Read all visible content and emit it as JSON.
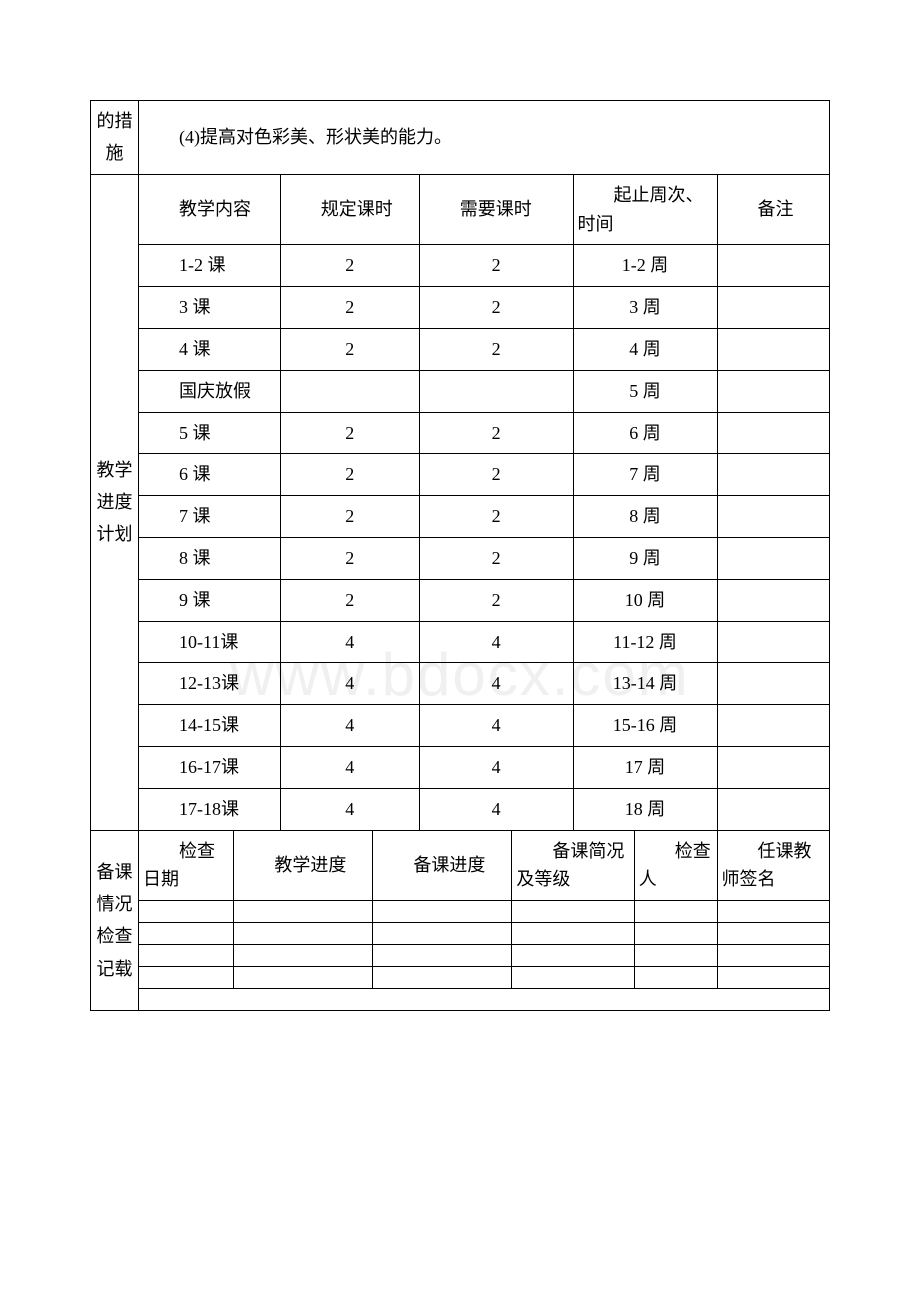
{
  "section1": {
    "header": "的措施",
    "content": "(4)提高对色彩美、形状美的能力。"
  },
  "schedule": {
    "header": "教学进度计划",
    "columns": {
      "content": "教学内容",
      "assigned": "规定课时",
      "required": "需要课时",
      "period": "起止周次、时间",
      "remark": "备注"
    },
    "rows": [
      {
        "content": "1-2 课",
        "assigned": "2",
        "required": "2",
        "period": "1-2 周",
        "remark": ""
      },
      {
        "content": "3 课",
        "assigned": "2",
        "required": "2",
        "period": "3 周",
        "remark": ""
      },
      {
        "content": "4 课",
        "assigned": "2",
        "required": "2",
        "period": "4 周",
        "remark": ""
      },
      {
        "content": "国庆放假",
        "assigned": "",
        "required": "",
        "period": "5 周",
        "remark": ""
      },
      {
        "content": "5 课",
        "assigned": "2",
        "required": "2",
        "period": "6 周",
        "remark": ""
      },
      {
        "content": "6 课",
        "assigned": "2",
        "required": "2",
        "period": "7 周",
        "remark": ""
      },
      {
        "content": "7 课",
        "assigned": "2",
        "required": "2",
        "period": "8 周",
        "remark": ""
      },
      {
        "content": "8 课",
        "assigned": "2",
        "required": "2",
        "period": "9 周",
        "remark": ""
      },
      {
        "content": "9 课",
        "assigned": "2",
        "required": "2",
        "period": "10 周",
        "remark": ""
      },
      {
        "content": "10-11课",
        "assigned": "4",
        "required": "4",
        "period": "11-12 周",
        "remark": ""
      },
      {
        "content": "12-13课",
        "assigned": "4",
        "required": "4",
        "period": "13-14 周",
        "remark": ""
      },
      {
        "content": "14-15课",
        "assigned": "4",
        "required": "4",
        "period": "15-16 周",
        "remark": ""
      },
      {
        "content": "16-17课",
        "assigned": "4",
        "required": "4",
        "period": "17 周",
        "remark": ""
      },
      {
        "content": "17-18课",
        "assigned": "4",
        "required": "4",
        "period": "18 周",
        "remark": ""
      }
    ]
  },
  "inspection": {
    "header": "备课情况检查记载",
    "columns": {
      "date": "检查日期",
      "teach_progress": "教学进度",
      "prep_progress": "备课进度",
      "prep_summary": "备课简况及等级",
      "inspector": "检查人",
      "teacher_sign": "任课教师签名"
    }
  },
  "style": {
    "border_color": "#000000",
    "background_color": "#ffffff",
    "text_color": "#000000",
    "watermark_color": "#f0f0f0",
    "font_size": 18
  }
}
